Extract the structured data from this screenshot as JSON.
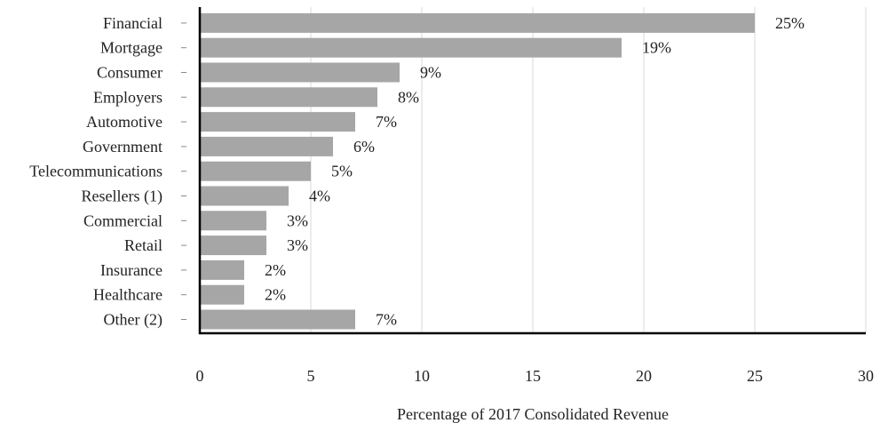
{
  "chart_data": {
    "type": "bar",
    "orientation": "horizontal",
    "categories": [
      "Financial",
      "Mortgage",
      "Consumer",
      "Employers",
      "Automotive",
      "Government",
      "Telecommunications",
      "Resellers (1)",
      "Commercial",
      "Retail",
      "Insurance",
      "Healthcare",
      "Other (2)"
    ],
    "values": [
      25,
      19,
      9,
      8,
      7,
      6,
      5,
      4,
      3,
      3,
      2,
      2,
      7
    ],
    "value_labels": [
      "25%",
      "19%",
      "9%",
      "8%",
      "7%",
      "6%",
      "5%",
      "4%",
      "3%",
      "3%",
      "2%",
      "2%",
      "7%"
    ],
    "xlabel": "Percentage of 2017 Consolidated Revenue",
    "ylabel": "",
    "xlim": [
      0,
      30
    ],
    "xticks": [
      0,
      5,
      10,
      15,
      20,
      25,
      30
    ],
    "grid": "vertical",
    "legend": "none",
    "bar_color": "#a6a6a6",
    "grid_color": "#d9d9d9",
    "axis_color": "#000000"
  }
}
